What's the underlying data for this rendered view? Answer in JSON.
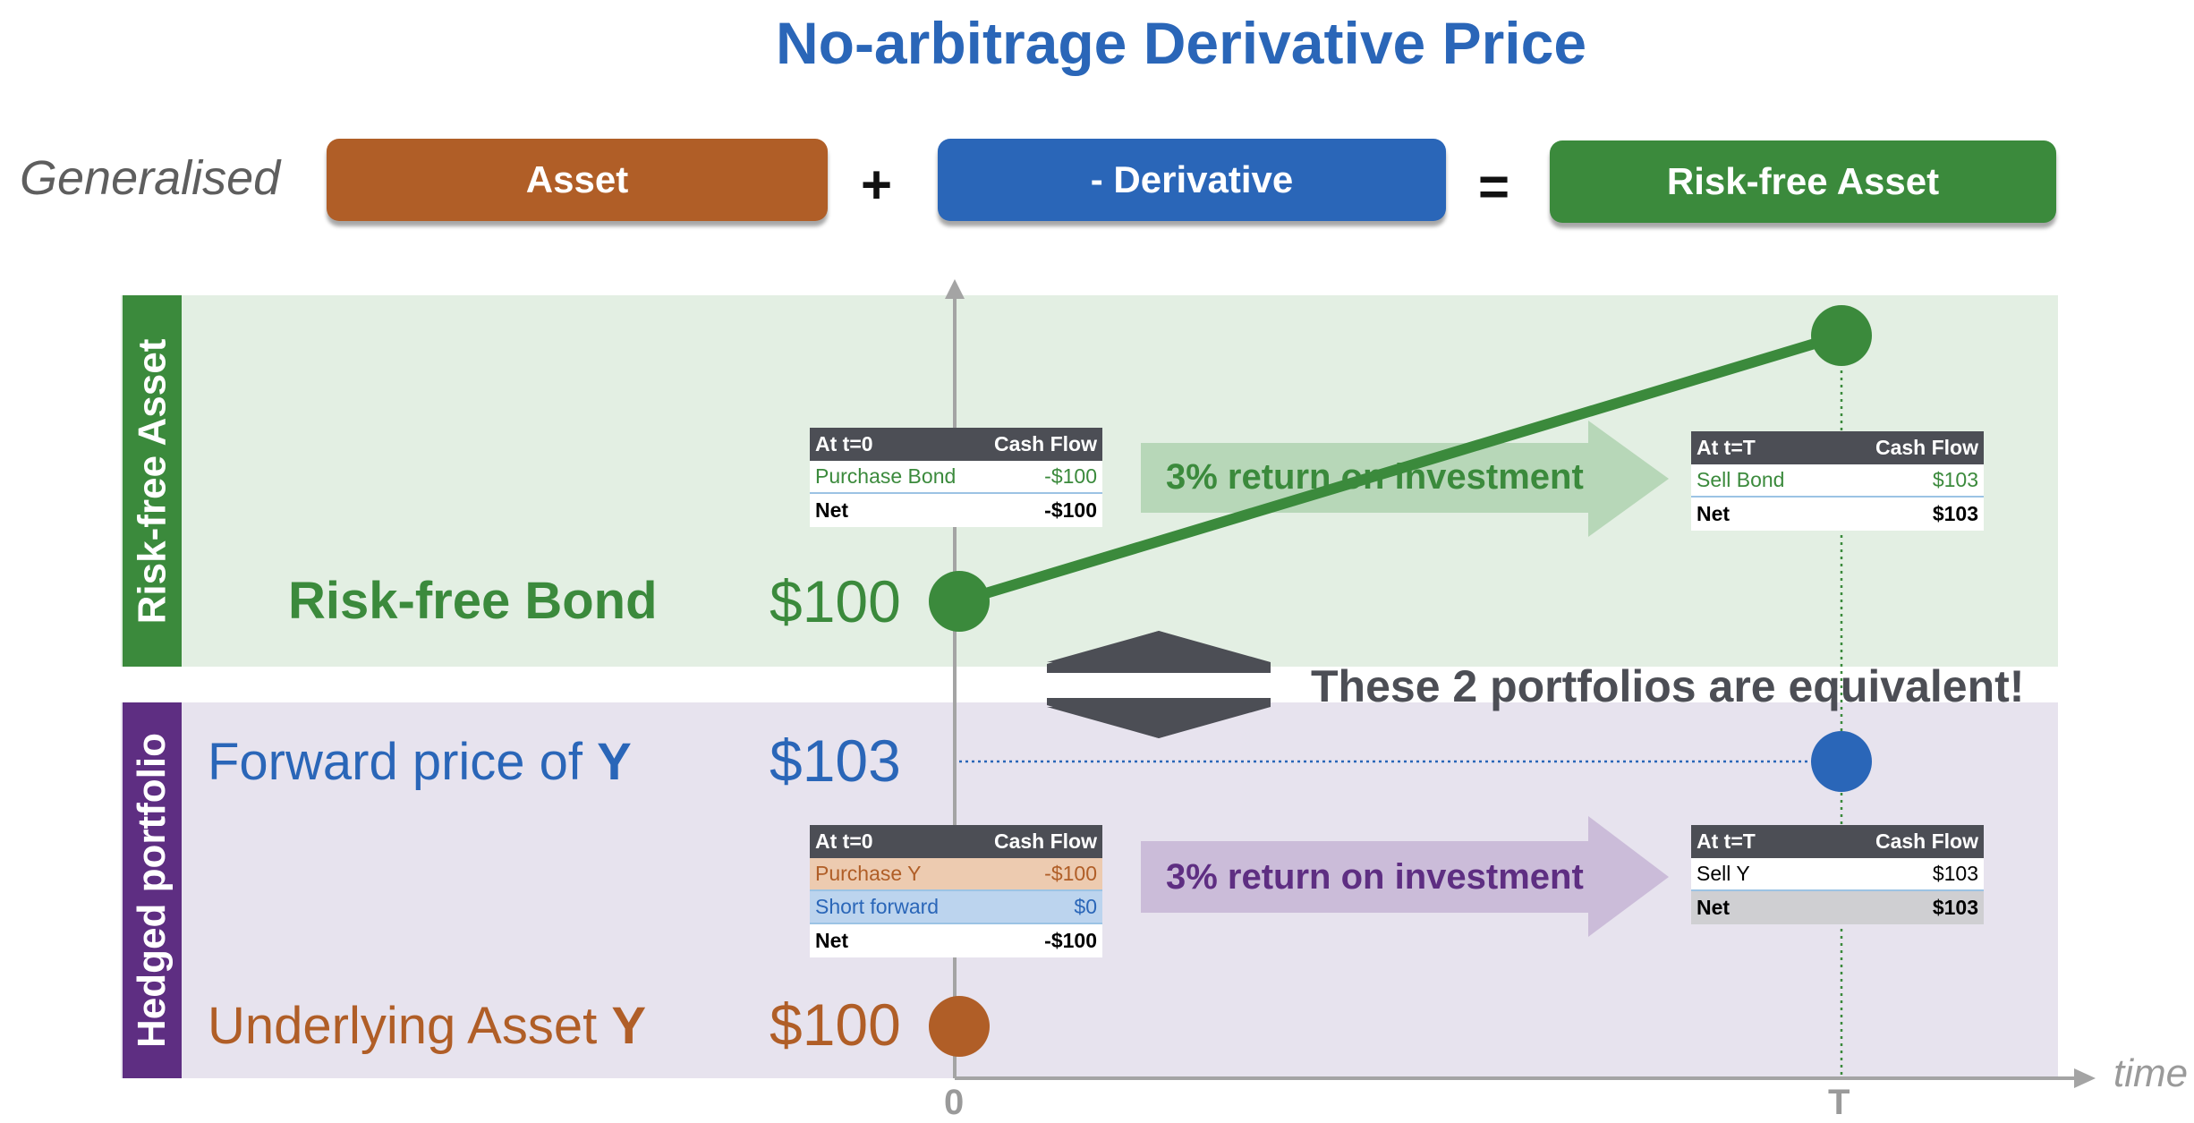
{
  "title": "No-arbitrage Derivative Price",
  "equation": {
    "label": "Generalised",
    "asset": "Asset",
    "plus": "+",
    "derivative": "- Derivative",
    "equals": "=",
    "riskfree": "Risk-free Asset"
  },
  "colors": {
    "brown": "#b05e27",
    "blue": "#2a66b8",
    "green": "#3b8a3c",
    "purple": "#5e2e82",
    "dark": "#4c4e55"
  },
  "top_band": {
    "side_label": "Risk-free Asset",
    "asset_label": "Risk-free Bond",
    "price": "$100",
    "table0": {
      "h1": "At t=0",
      "h2": "Cash Flow",
      "rows": [
        {
          "label": "Purchase Bond",
          "value": "-$100"
        }
      ],
      "net_label": "Net",
      "net_value": "-$100"
    },
    "arrow_text": "3% return on investment",
    "tableT": {
      "h1": "At t=T",
      "h2": "Cash Flow",
      "rows": [
        {
          "label": "Sell Bond",
          "value": "$103"
        }
      ],
      "net_label": "Net",
      "net_value": "$103"
    }
  },
  "equivalence_text": "These 2 portfolios are equivalent!",
  "bottom_band": {
    "side_label": "Hedged portfolio",
    "forward_label": "Forward price of ",
    "forward_symbol": "Y",
    "forward_price": "$103",
    "asset_label": "Underlying Asset ",
    "asset_symbol": "Y",
    "asset_price": "$100",
    "table0": {
      "h1": "At t=0",
      "h2": "Cash Flow",
      "rows": [
        {
          "label": "Purchase Y",
          "value": "-$100"
        },
        {
          "label": "Short forward",
          "value": "$0"
        }
      ],
      "net_label": "Net",
      "net_value": "-$100"
    },
    "arrow_text": "3% return on investment",
    "tableT": {
      "h1": "At t=T",
      "h2": "Cash Flow",
      "rows": [
        {
          "label": "Sell Y",
          "value": "$103"
        }
      ],
      "net_label": "Net",
      "net_value": "$103"
    }
  },
  "axis": {
    "origin_label": "0",
    "end_label": "T",
    "axis_label": "time"
  }
}
